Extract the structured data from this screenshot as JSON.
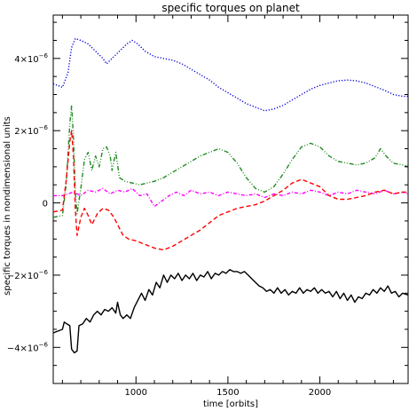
{
  "chart_data": {
    "type": "line",
    "title": "specific torques on planet",
    "xlabel": "time [orbits]",
    "ylabel": "specific torques in nondimensional units",
    "xlim": [
      550,
      2480
    ],
    "ylim": [
      -5e-06,
      5.2e-06
    ],
    "x_ticks": [
      1000,
      1500,
      2000
    ],
    "x_tick_labels": [
      "1000",
      "1500",
      "2000"
    ],
    "y_ticks": [
      -4e-06,
      -2e-06,
      0,
      2e-06,
      4e-06
    ],
    "y_tick_labels": [
      {
        "mantissa": "−4×10",
        "exp": "−6"
      },
      {
        "mantissa": "−2×10",
        "exp": "−6"
      },
      {
        "mantissa": "0",
        "exp": ""
      },
      {
        "mantissa": "2×10",
        "exp": "−6"
      },
      {
        "mantissa": "4×10",
        "exp": "−6"
      }
    ],
    "grid": false,
    "series": [
      {
        "color": "#0000dd",
        "dash": "dotted",
        "points": [
          [
            550,
            3.3e-06
          ],
          [
            600,
            3.2e-06
          ],
          [
            630,
            3.6e-06
          ],
          [
            650,
            4.3e-06
          ],
          [
            670,
            4.55e-06
          ],
          [
            700,
            4.5e-06
          ],
          [
            740,
            4.4e-06
          ],
          [
            780,
            4.2e-06
          ],
          [
            820,
            4e-06
          ],
          [
            840,
            3.85e-06
          ],
          [
            870,
            4e-06
          ],
          [
            910,
            4.2e-06
          ],
          [
            950,
            4.4e-06
          ],
          [
            980,
            4.5e-06
          ],
          [
            1010,
            4.4e-06
          ],
          [
            1050,
            4.2e-06
          ],
          [
            1100,
            4.05e-06
          ],
          [
            1150,
            4e-06
          ],
          [
            1200,
            3.95e-06
          ],
          [
            1250,
            3.85e-06
          ],
          [
            1300,
            3.7e-06
          ],
          [
            1350,
            3.55e-06
          ],
          [
            1400,
            3.4e-06
          ],
          [
            1450,
            3.2e-06
          ],
          [
            1500,
            3.05e-06
          ],
          [
            1550,
            2.9e-06
          ],
          [
            1600,
            2.75e-06
          ],
          [
            1650,
            2.65e-06
          ],
          [
            1700,
            2.55e-06
          ],
          [
            1750,
            2.6e-06
          ],
          [
            1800,
            2.7e-06
          ],
          [
            1850,
            2.85e-06
          ],
          [
            1900,
            3e-06
          ],
          [
            1950,
            3.15e-06
          ],
          [
            2000,
            3.25e-06
          ],
          [
            2050,
            3.32e-06
          ],
          [
            2100,
            3.38e-06
          ],
          [
            2150,
            3.4e-06
          ],
          [
            2200,
            3.38e-06
          ],
          [
            2250,
            3.32e-06
          ],
          [
            2300,
            3.22e-06
          ],
          [
            2350,
            3.12e-06
          ],
          [
            2400,
            3e-06
          ],
          [
            2450,
            2.95e-06
          ],
          [
            2480,
            2.95e-06
          ]
        ]
      },
      {
        "color": "#228b22",
        "dash": "dashdotdot",
        "points": [
          [
            550,
            -4e-07
          ],
          [
            600,
            -3.5e-07
          ],
          [
            620,
            5e-07
          ],
          [
            640,
            2.2e-06
          ],
          [
            650,
            2.7e-06
          ],
          [
            660,
            1.8e-06
          ],
          [
            670,
            3e-07
          ],
          [
            680,
            -3e-07
          ],
          [
            700,
            4e-07
          ],
          [
            720,
            1.2e-06
          ],
          [
            740,
            1.4e-06
          ],
          [
            760,
            9e-07
          ],
          [
            780,
            1.3e-06
          ],
          [
            800,
            1e-06
          ],
          [
            820,
            1.5e-06
          ],
          [
            840,
            1.55e-06
          ],
          [
            860,
            1.3e-06
          ],
          [
            870,
            9e-07
          ],
          [
            890,
            1.4e-06
          ],
          [
            910,
            7e-07
          ],
          [
            940,
            6e-07
          ],
          [
            980,
            5.5e-07
          ],
          [
            1020,
            5e-07
          ],
          [
            1060,
            5.5e-07
          ],
          [
            1100,
            6e-07
          ],
          [
            1150,
            7e-07
          ],
          [
            1200,
            8.5e-07
          ],
          [
            1250,
            1e-06
          ],
          [
            1300,
            1.15e-06
          ],
          [
            1350,
            1.3e-06
          ],
          [
            1400,
            1.4e-06
          ],
          [
            1450,
            1.5e-06
          ],
          [
            1500,
            1.4e-06
          ],
          [
            1550,
            1.1e-06
          ],
          [
            1600,
            7e-07
          ],
          [
            1650,
            4e-07
          ],
          [
            1700,
            3e-07
          ],
          [
            1750,
            4.5e-07
          ],
          [
            1800,
            8e-07
          ],
          [
            1850,
            1.2e-06
          ],
          [
            1900,
            1.55e-06
          ],
          [
            1950,
            1.65e-06
          ],
          [
            2000,
            1.55e-06
          ],
          [
            2050,
            1.3e-06
          ],
          [
            2100,
            1.15e-06
          ],
          [
            2150,
            1.1e-06
          ],
          [
            2200,
            1.05e-06
          ],
          [
            2250,
            1.1e-06
          ],
          [
            2300,
            1.25e-06
          ],
          [
            2330,
            1.5e-06
          ],
          [
            2360,
            1.3e-06
          ],
          [
            2400,
            1.1e-06
          ],
          [
            2450,
            1.05e-06
          ],
          [
            2480,
            1e-06
          ]
        ]
      },
      {
        "color": "#ff00ff",
        "dash": "dashdot",
        "points": [
          [
            550,
            2e-07
          ],
          [
            600,
            2e-07
          ],
          [
            630,
            2.5e-07
          ],
          [
            660,
            3e-07
          ],
          [
            700,
            2e-07
          ],
          [
            740,
            3.5e-07
          ],
          [
            780,
            3e-07
          ],
          [
            820,
            4e-07
          ],
          [
            860,
            2.5e-07
          ],
          [
            900,
            3.5e-07
          ],
          [
            940,
            3e-07
          ],
          [
            980,
            4e-07
          ],
          [
            1020,
            2e-07
          ],
          [
            1060,
            2.5e-07
          ],
          [
            1100,
            -1e-07
          ],
          [
            1140,
            5e-08
          ],
          [
            1180,
            2e-07
          ],
          [
            1220,
            3e-07
          ],
          [
            1260,
            2e-07
          ],
          [
            1300,
            3.5e-07
          ],
          [
            1350,
            2.5e-07
          ],
          [
            1400,
            3e-07
          ],
          [
            1450,
            2e-07
          ],
          [
            1500,
            3e-07
          ],
          [
            1550,
            2.5e-07
          ],
          [
            1600,
            2e-07
          ],
          [
            1650,
            2.5e-07
          ],
          [
            1700,
            1.5e-07
          ],
          [
            1750,
            2.5e-07
          ],
          [
            1800,
            2e-07
          ],
          [
            1850,
            3e-07
          ],
          [
            1900,
            2.5e-07
          ],
          [
            1950,
            3.5e-07
          ],
          [
            2000,
            3e-07
          ],
          [
            2050,
            2e-07
          ],
          [
            2100,
            3e-07
          ],
          [
            2150,
            2.5e-07
          ],
          [
            2200,
            3.5e-07
          ],
          [
            2250,
            3e-07
          ],
          [
            2300,
            2.5e-07
          ],
          [
            2350,
            3.5e-07
          ],
          [
            2400,
            2.5e-07
          ],
          [
            2450,
            3e-07
          ],
          [
            2480,
            2.5e-07
          ]
        ]
      },
      {
        "color": "#ff0000",
        "dash": "dashed",
        "points": [
          [
            550,
            -2.5e-07
          ],
          [
            600,
            -2e-07
          ],
          [
            620,
            6e-07
          ],
          [
            640,
            1.7e-06
          ],
          [
            650,
            2e-06
          ],
          [
            660,
            1.3e-06
          ],
          [
            670,
            -2e-07
          ],
          [
            680,
            -9e-07
          ],
          [
            700,
            -4e-07
          ],
          [
            720,
            -1.5e-07
          ],
          [
            740,
            -3.5e-07
          ],
          [
            760,
            -6e-07
          ],
          [
            790,
            -3e-07
          ],
          [
            820,
            -1.5e-07
          ],
          [
            850,
            -2e-07
          ],
          [
            880,
            -4e-07
          ],
          [
            900,
            -6e-07
          ],
          [
            930,
            -9e-07
          ],
          [
            960,
            -1e-06
          ],
          [
            1000,
            -1.05e-06
          ],
          [
            1050,
            -1.15e-06
          ],
          [
            1100,
            -1.25e-06
          ],
          [
            1150,
            -1.3e-06
          ],
          [
            1200,
            -1.2e-06
          ],
          [
            1250,
            -1.05e-06
          ],
          [
            1300,
            -9e-07
          ],
          [
            1350,
            -7.5e-07
          ],
          [
            1400,
            -5.5e-07
          ],
          [
            1450,
            -3.5e-07
          ],
          [
            1500,
            -2.5e-07
          ],
          [
            1550,
            -1.5e-07
          ],
          [
            1600,
            -1e-07
          ],
          [
            1650,
            -5e-08
          ],
          [
            1700,
            5e-08
          ],
          [
            1750,
            2e-07
          ],
          [
            1800,
            3.5e-07
          ],
          [
            1850,
            5.5e-07
          ],
          [
            1900,
            6.5e-07
          ],
          [
            1950,
            5.5e-07
          ],
          [
            2000,
            4.5e-07
          ],
          [
            2050,
            2e-07
          ],
          [
            2100,
            1e-07
          ],
          [
            2150,
            1e-07
          ],
          [
            2200,
            1.5e-07
          ],
          [
            2250,
            2e-07
          ],
          [
            2300,
            3e-07
          ],
          [
            2350,
            3.5e-07
          ],
          [
            2400,
            2.5e-07
          ],
          [
            2450,
            3e-07
          ],
          [
            2480,
            3e-07
          ]
        ]
      },
      {
        "color": "#000000",
        "dash": "solid",
        "points": [
          [
            550,
            -3.6e-06
          ],
          [
            600,
            -3.5e-06
          ],
          [
            610,
            -3.3e-06
          ],
          [
            625,
            -3.35e-06
          ],
          [
            640,
            -3.4e-06
          ],
          [
            650,
            -4.05e-06
          ],
          [
            665,
            -4.15e-06
          ],
          [
            680,
            -4.1e-06
          ],
          [
            690,
            -3.4e-06
          ],
          [
            710,
            -3.35e-06
          ],
          [
            730,
            -3.2e-06
          ],
          [
            750,
            -3.3e-06
          ],
          [
            770,
            -3.1e-06
          ],
          [
            790,
            -3e-06
          ],
          [
            810,
            -3.1e-06
          ],
          [
            830,
            -2.95e-06
          ],
          [
            850,
            -3e-06
          ],
          [
            870,
            -2.9e-06
          ],
          [
            890,
            -3.05e-06
          ],
          [
            900,
            -2.75e-06
          ],
          [
            915,
            -3.1e-06
          ],
          [
            930,
            -3.2e-06
          ],
          [
            950,
            -3.1e-06
          ],
          [
            970,
            -3.2e-06
          ],
          [
            990,
            -2.9e-06
          ],
          [
            1010,
            -2.7e-06
          ],
          [
            1030,
            -2.5e-06
          ],
          [
            1050,
            -2.7e-06
          ],
          [
            1070,
            -2.4e-06
          ],
          [
            1090,
            -2.55e-06
          ],
          [
            1110,
            -2.2e-06
          ],
          [
            1130,
            -2.35e-06
          ],
          [
            1150,
            -2e-06
          ],
          [
            1170,
            -2.2e-06
          ],
          [
            1190,
            -2e-06
          ],
          [
            1210,
            -2.1e-06
          ],
          [
            1230,
            -1.95e-06
          ],
          [
            1250,
            -2.15e-06
          ],
          [
            1270,
            -2e-06
          ],
          [
            1290,
            -2.1e-06
          ],
          [
            1310,
            -1.95e-06
          ],
          [
            1330,
            -2.15e-06
          ],
          [
            1350,
            -2e-06
          ],
          [
            1370,
            -2.05e-06
          ],
          [
            1390,
            -1.9e-06
          ],
          [
            1410,
            -2.1e-06
          ],
          [
            1430,
            -1.95e-06
          ],
          [
            1450,
            -2e-06
          ],
          [
            1470,
            -1.9e-06
          ],
          [
            1490,
            -1.95e-06
          ],
          [
            1510,
            -1.85e-06
          ],
          [
            1530,
            -1.9e-06
          ],
          [
            1550,
            -1.9e-06
          ],
          [
            1570,
            -1.95e-06
          ],
          [
            1590,
            -1.9e-06
          ],
          [
            1610,
            -2e-06
          ],
          [
            1630,
            -2.1e-06
          ],
          [
            1650,
            -2.2e-06
          ],
          [
            1670,
            -2.3e-06
          ],
          [
            1690,
            -2.35e-06
          ],
          [
            1710,
            -2.45e-06
          ],
          [
            1730,
            -2.4e-06
          ],
          [
            1750,
            -2.5e-06
          ],
          [
            1770,
            -2.35e-06
          ],
          [
            1790,
            -2.5e-06
          ],
          [
            1810,
            -2.4e-06
          ],
          [
            1830,
            -2.55e-06
          ],
          [
            1850,
            -2.45e-06
          ],
          [
            1870,
            -2.5e-06
          ],
          [
            1890,
            -2.35e-06
          ],
          [
            1910,
            -2.5e-06
          ],
          [
            1930,
            -2.4e-06
          ],
          [
            1950,
            -2.45e-06
          ],
          [
            1970,
            -2.35e-06
          ],
          [
            1990,
            -2.5e-06
          ],
          [
            2010,
            -2.4e-06
          ],
          [
            2030,
            -2.5e-06
          ],
          [
            2050,
            -2.45e-06
          ],
          [
            2070,
            -2.6e-06
          ],
          [
            2090,
            -2.45e-06
          ],
          [
            2110,
            -2.65e-06
          ],
          [
            2130,
            -2.5e-06
          ],
          [
            2150,
            -2.7e-06
          ],
          [
            2170,
            -2.55e-06
          ],
          [
            2190,
            -2.75e-06
          ],
          [
            2210,
            -2.6e-06
          ],
          [
            2230,
            -2.65e-06
          ],
          [
            2250,
            -2.5e-06
          ],
          [
            2270,
            -2.55e-06
          ],
          [
            2290,
            -2.4e-06
          ],
          [
            2310,
            -2.5e-06
          ],
          [
            2330,
            -2.35e-06
          ],
          [
            2350,
            -2.45e-06
          ],
          [
            2370,
            -2.3e-06
          ],
          [
            2390,
            -2.5e-06
          ],
          [
            2410,
            -2.45e-06
          ],
          [
            2430,
            -2.6e-06
          ],
          [
            2450,
            -2.5e-06
          ],
          [
            2480,
            -2.55e-06
          ]
        ]
      }
    ]
  }
}
